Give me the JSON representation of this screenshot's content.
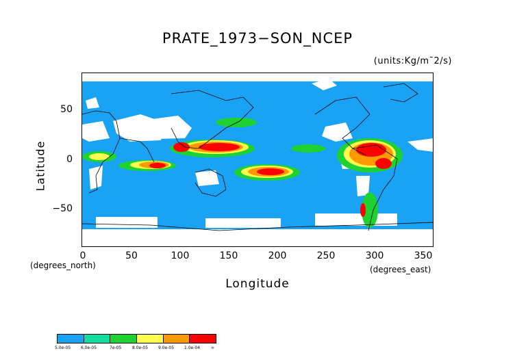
{
  "title": "PRATE_1973−SON_NCEP",
  "units": "(units:Kg/m¯2/s)",
  "axes": {
    "y_label": "Latitude",
    "x_label": "Longitude",
    "y_units": "(degrees_north)",
    "x_units": "(degrees_east)",
    "y_ticks": [
      "50",
      "0",
      "−50"
    ],
    "x_ticks": [
      "0",
      "50",
      "100",
      "150",
      "200",
      "250",
      "300",
      "350"
    ]
  },
  "colorbar": {
    "colors": [
      "#1aa3f5",
      "#14dca0",
      "#1ed232",
      "#ffff50",
      "#ff9b00",
      "#ff0000"
    ],
    "labels": [
      "5.0e-05",
      "6.0e-05",
      "7e-05",
      "8.0e-05",
      "9.0e-05",
      "1.0e-04",
      "∞"
    ]
  }
}
